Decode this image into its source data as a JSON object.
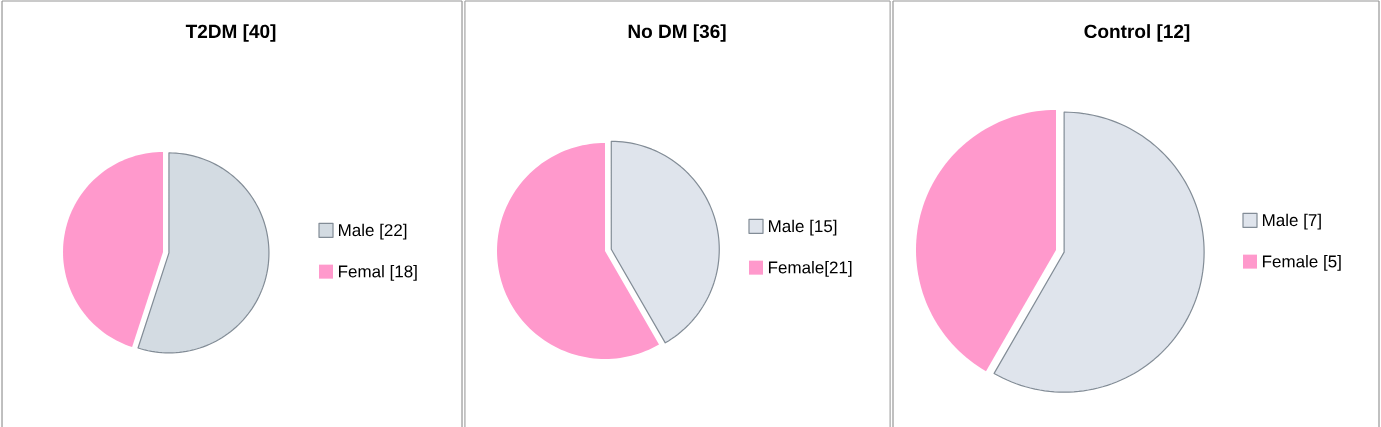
{
  "chart_data": [
    {
      "type": "pie",
      "title": "T2DM [40]",
      "categories": [
        "Male [22]",
        "Femal [18]"
      ],
      "values": [
        22,
        18
      ],
      "colors": [
        "#d3dbe2",
        "#ff99cc"
      ],
      "legend": "right"
    },
    {
      "type": "pie",
      "title": "No DM [36]",
      "categories": [
        "Male [15]",
        "Female[21]"
      ],
      "values": [
        15,
        21
      ],
      "colors": [
        "#dfe4ec",
        "#ff99cc"
      ],
      "legend": "right"
    },
    {
      "type": "pie",
      "title": "Control [12]",
      "categories": [
        "Male [7]",
        "Female [5]"
      ],
      "values": [
        7,
        5
      ],
      "colors": [
        "#dfe4ec",
        "#ff99cc"
      ],
      "legend": "right"
    }
  ]
}
